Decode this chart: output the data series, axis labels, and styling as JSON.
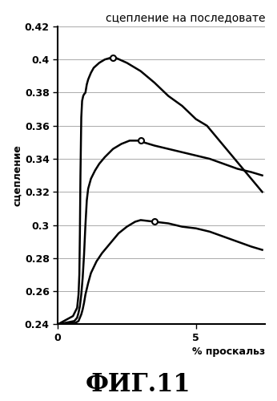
{
  "title": "сцепление на последовате",
  "xlabel": "% проскальз",
  "ylabel": "сцепление",
  "fig_label": "ФИГ.11",
  "ylim": [
    0.24,
    0.42
  ],
  "xlim": [
    0,
    7.5
  ],
  "yticks": [
    0.24,
    0.26,
    0.28,
    0.3,
    0.32,
    0.34,
    0.36,
    0.38,
    0.4,
    0.42
  ],
  "xticks": [
    0,
    5
  ],
  "curve1": {
    "x": [
      0.0,
      0.55,
      0.7,
      0.75,
      0.78,
      0.8,
      0.82,
      0.85,
      0.88,
      0.92,
      0.95,
      1.0,
      1.05,
      1.1,
      1.15,
      1.2,
      1.3,
      1.5,
      1.7,
      1.9,
      2.1,
      2.5,
      3.0,
      3.5,
      4.0,
      4.5,
      5.0,
      5.4,
      5.5,
      5.6,
      6.0,
      6.5,
      7.0,
      7.4
    ],
    "y": [
      0.24,
      0.245,
      0.25,
      0.258,
      0.27,
      0.295,
      0.33,
      0.365,
      0.375,
      0.378,
      0.379,
      0.38,
      0.385,
      0.388,
      0.39,
      0.392,
      0.395,
      0.398,
      0.4,
      0.401,
      0.401,
      0.398,
      0.393,
      0.386,
      0.378,
      0.372,
      0.364,
      0.36,
      0.358,
      0.356,
      0.348,
      0.338,
      0.328,
      0.32
    ],
    "peak_x": 2.0,
    "peak_y": 0.401
  },
  "curve2": {
    "x": [
      0.0,
      0.6,
      0.7,
      0.75,
      0.8,
      0.85,
      0.9,
      0.95,
      1.0,
      1.05,
      1.1,
      1.2,
      1.35,
      1.5,
      1.7,
      2.0,
      2.3,
      2.6,
      2.9,
      3.1,
      3.5,
      4.0,
      4.5,
      5.0,
      5.5,
      6.0,
      6.5,
      7.0,
      7.4
    ],
    "y": [
      0.24,
      0.242,
      0.244,
      0.247,
      0.251,
      0.258,
      0.268,
      0.282,
      0.3,
      0.315,
      0.322,
      0.328,
      0.333,
      0.337,
      0.341,
      0.346,
      0.349,
      0.351,
      0.351,
      0.35,
      0.348,
      0.346,
      0.344,
      0.342,
      0.34,
      0.337,
      0.334,
      0.332,
      0.33
    ],
    "peak_x": 3.0,
    "peak_y": 0.351
  },
  "curve3": {
    "x": [
      0.0,
      0.65,
      0.75,
      0.8,
      0.85,
      0.9,
      0.95,
      1.0,
      1.1,
      1.2,
      1.4,
      1.6,
      1.9,
      2.2,
      2.5,
      2.8,
      3.0,
      3.5,
      4.0,
      4.5,
      5.0,
      5.5,
      6.0,
      6.5,
      7.0,
      7.4
    ],
    "y": [
      0.24,
      0.241,
      0.242,
      0.244,
      0.246,
      0.249,
      0.253,
      0.258,
      0.265,
      0.271,
      0.278,
      0.283,
      0.289,
      0.295,
      0.299,
      0.302,
      0.303,
      0.302,
      0.301,
      0.299,
      0.298,
      0.296,
      0.293,
      0.29,
      0.287,
      0.285
    ],
    "peak_x": 3.5,
    "peak_y": 0.302
  },
  "background_color": "#ffffff",
  "line_color": "#000000",
  "grid_color": "#888888",
  "title_fontsize": 10,
  "label_fontsize": 9,
  "figlabel_fontsize": 22,
  "tick_fontsize": 9
}
